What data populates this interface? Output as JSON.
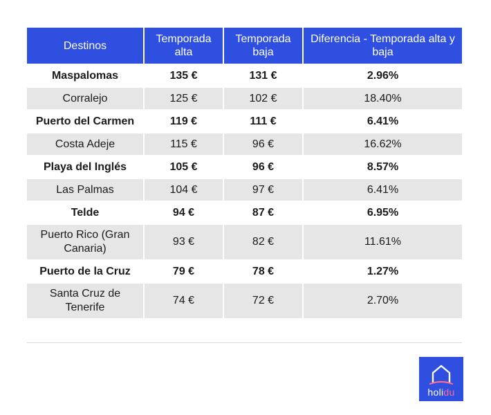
{
  "table": {
    "headers": [
      "Destinos",
      "Temporada alta",
      "Temporada baja",
      "Diferencia  - Temporada alta y baja"
    ],
    "rows": [
      {
        "destino": "Maspalomas",
        "alta": "135 €",
        "baja": "131 €",
        "diferencia": "2.96%"
      },
      {
        "destino": "Corralejo",
        "alta": "125 €",
        "baja": "102 €",
        "diferencia": "18.40%"
      },
      {
        "destino": "Puerto del Carmen",
        "alta": "119 €",
        "baja": "111 €",
        "diferencia": "6.41%"
      },
      {
        "destino": "Costa Adeje",
        "alta": "115 €",
        "baja": "96 €",
        "diferencia": "16.62%"
      },
      {
        "destino": "Playa del Inglés",
        "alta": "105 €",
        "baja": "96 €",
        "diferencia": "8.57%"
      },
      {
        "destino": "Las Palmas",
        "alta": "104 €",
        "baja": "97 €",
        "diferencia": "6.41%"
      },
      {
        "destino": "Telde",
        "alta": "94 €",
        "baja": "87 €",
        "diferencia": "6.95%"
      },
      {
        "destino": "Puerto Rico (Gran Canaria)",
        "alta": "93 €",
        "baja": "82 €",
        "diferencia": "11.61%"
      },
      {
        "destino": "Puerto de la Cruz",
        "alta": "79 €",
        "baja": "78 €",
        "diferencia": "1.27%"
      },
      {
        "destino": "Santa Cruz de Tenerife",
        "alta": "74 €",
        "baja": "72 €",
        "diferencia": "2.70%"
      }
    ]
  },
  "logo": {
    "text_main": "holi",
    "text_accent": "du",
    "icon": "house-outline-icon"
  },
  "colors": {
    "header_bg": "#2f4fe0",
    "stripe_bg": "#e6e6e6",
    "logo_accent": "#ff6b8a"
  }
}
